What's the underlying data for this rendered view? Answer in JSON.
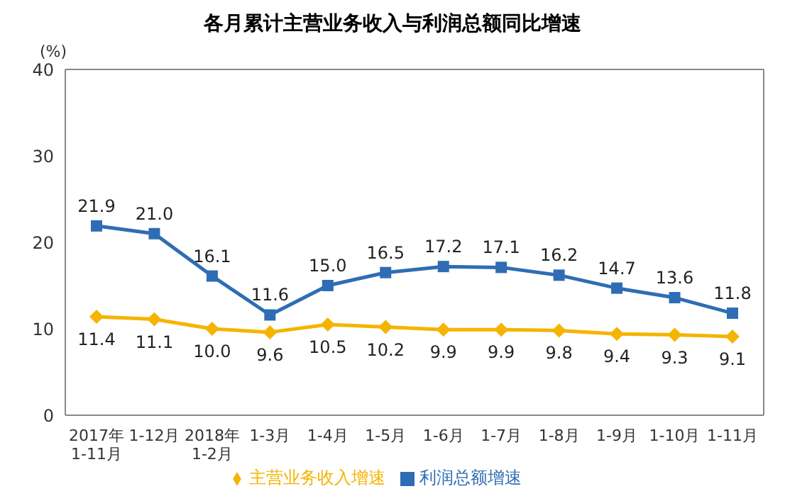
{
  "chart_data": {
    "type": "line",
    "title": "各月累计主营业务收入与利润总额同比增速",
    "ylabel": "(%)",
    "categories": [
      "2017年\n1-11月",
      "1-12月",
      "2018年\n1-2月",
      "1-3月",
      "1-4月",
      "1-5月",
      "1-6月",
      "1-7月",
      "1-8月",
      "1-9月",
      "1-10月",
      "1-11月"
    ],
    "series": [
      {
        "name": "主营业务收入增速",
        "color": "#f5b400",
        "marker": "diamond",
        "values": [
          11.4,
          11.1,
          10.0,
          9.6,
          10.5,
          10.2,
          9.9,
          9.9,
          9.8,
          9.4,
          9.3,
          9.1
        ],
        "value_labels": [
          "11.4",
          "11.1",
          "10.0",
          "9.6",
          "10.5",
          "10.2",
          "9.9",
          "9.9",
          "9.8",
          "9.4",
          "9.3",
          "9.1"
        ]
      },
      {
        "name": "利润总额增速",
        "color": "#2e6db4",
        "marker": "square",
        "values": [
          21.9,
          21.0,
          16.1,
          11.6,
          15.0,
          16.5,
          17.2,
          17.1,
          16.2,
          14.7,
          13.6,
          11.8
        ],
        "value_labels": [
          "21.9",
          "21.0",
          "16.1",
          "11.6",
          "15.0",
          "16.5",
          "17.2",
          "17.1",
          "16.2",
          "14.7",
          "13.6",
          "11.8"
        ]
      }
    ],
    "ylim": [
      0,
      40
    ],
    "yticks": [
      0,
      10,
      20,
      30,
      40
    ],
    "legend": "bottom",
    "grid": false
  }
}
